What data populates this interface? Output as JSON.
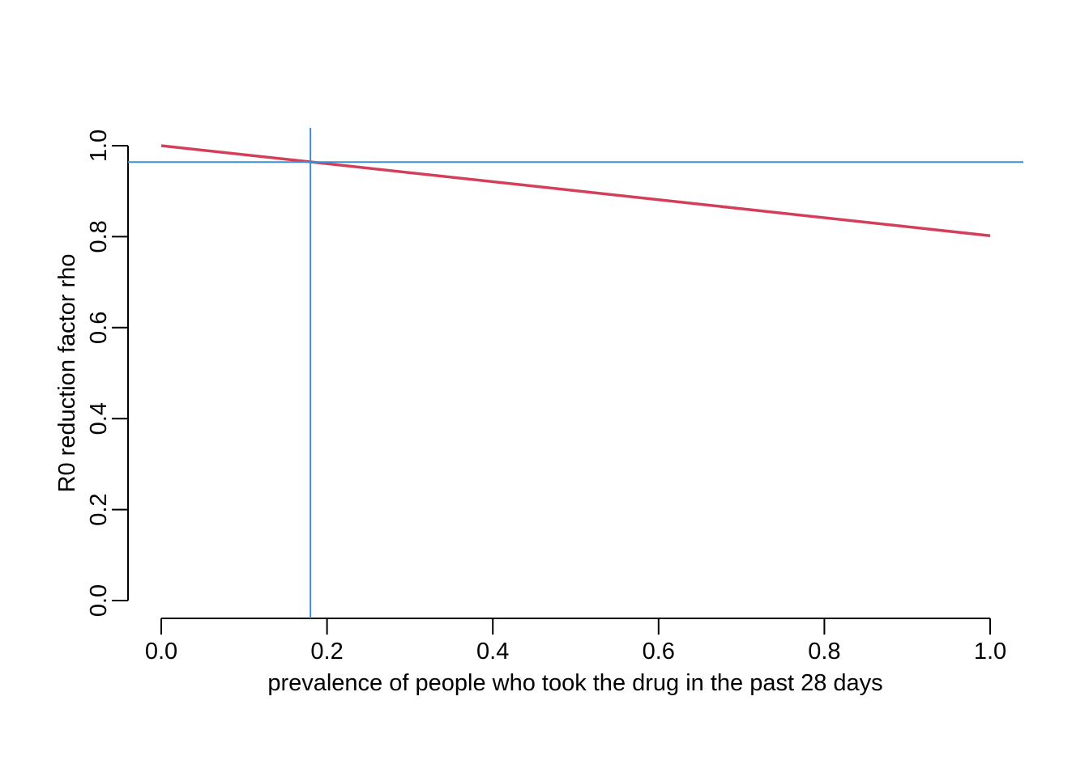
{
  "chart_data": {
    "type": "line",
    "title": "",
    "xlabel": "prevalence of people who took the drug in the past 28 days",
    "ylabel": "R0 reduction factor rho",
    "xlim": [
      0.0,
      1.0
    ],
    "ylim": [
      0.0,
      1.0
    ],
    "xticks": [
      "0.0",
      "0.2",
      "0.4",
      "0.6",
      "0.8",
      "1.0"
    ],
    "yticks": [
      "0.0",
      "0.2",
      "0.4",
      "0.6",
      "0.8",
      "1.0"
    ],
    "grid": false,
    "series": [
      {
        "x": [
          0.0,
          1.0
        ],
        "y": [
          1.0,
          0.802
        ],
        "color": "#D33F5A"
      }
    ],
    "reference_lines": {
      "vertical_x": 0.18,
      "horizontal_y": 0.964,
      "color": "#3C8DD6"
    }
  }
}
